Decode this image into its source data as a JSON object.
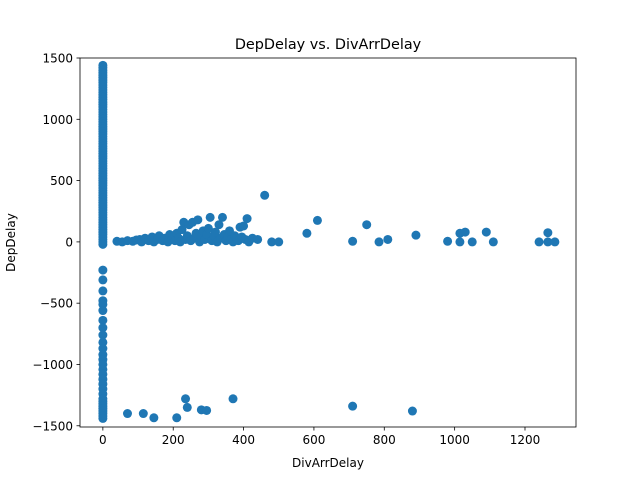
{
  "chart_data": {
    "type": "scatter",
    "title": "DepDelay vs. DivArrDelay",
    "xlabel": "DivArrDelay",
    "ylabel": "DepDelay",
    "xlim": [
      -65,
      1345
    ],
    "ylim": [
      -1510,
      1500
    ],
    "xticks": [
      0,
      200,
      400,
      600,
      800,
      1000,
      1200
    ],
    "yticks": [
      -1500,
      -1000,
      -500,
      0,
      500,
      1000,
      1500
    ],
    "grid": false,
    "legend": "none",
    "marker_color": "#1f77b4",
    "points": [
      [
        0,
        1440
      ],
      [
        0,
        1420
      ],
      [
        0,
        1400
      ],
      [
        0,
        1380
      ],
      [
        0,
        1360
      ],
      [
        0,
        1340
      ],
      [
        0,
        1320
      ],
      [
        0,
        1300
      ],
      [
        0,
        1280
      ],
      [
        0,
        1260
      ],
      [
        0,
        1240
      ],
      [
        0,
        1220
      ],
      [
        0,
        1200
      ],
      [
        0,
        1180
      ],
      [
        0,
        1160
      ],
      [
        0,
        1140
      ],
      [
        0,
        1120
      ],
      [
        0,
        1100
      ],
      [
        0,
        1080
      ],
      [
        0,
        1060
      ],
      [
        0,
        1040
      ],
      [
        0,
        1020
      ],
      [
        0,
        1000
      ],
      [
        0,
        980
      ],
      [
        0,
        960
      ],
      [
        0,
        940
      ],
      [
        0,
        920
      ],
      [
        0,
        900
      ],
      [
        0,
        880
      ],
      [
        0,
        860
      ],
      [
        0,
        840
      ],
      [
        0,
        820
      ],
      [
        0,
        800
      ],
      [
        0,
        780
      ],
      [
        0,
        760
      ],
      [
        0,
        740
      ],
      [
        0,
        720
      ],
      [
        0,
        700
      ],
      [
        0,
        680
      ],
      [
        0,
        660
      ],
      [
        0,
        640
      ],
      [
        0,
        620
      ],
      [
        0,
        600
      ],
      [
        0,
        580
      ],
      [
        0,
        560
      ],
      [
        0,
        540
      ],
      [
        0,
        520
      ],
      [
        0,
        500
      ],
      [
        0,
        480
      ],
      [
        0,
        460
      ],
      [
        0,
        440
      ],
      [
        0,
        420
      ],
      [
        0,
        400
      ],
      [
        0,
        380
      ],
      [
        0,
        360
      ],
      [
        0,
        340
      ],
      [
        0,
        320
      ],
      [
        0,
        300
      ],
      [
        0,
        280
      ],
      [
        0,
        260
      ],
      [
        0,
        240
      ],
      [
        0,
        220
      ],
      [
        0,
        200
      ],
      [
        0,
        180
      ],
      [
        0,
        160
      ],
      [
        0,
        140
      ],
      [
        0,
        120
      ],
      [
        0,
        100
      ],
      [
        0,
        80
      ],
      [
        0,
        60
      ],
      [
        0,
        40
      ],
      [
        0,
        20
      ],
      [
        0,
        0
      ],
      [
        0,
        -20
      ],
      [
        0,
        -230
      ],
      [
        0,
        -310
      ],
      [
        0,
        -400
      ],
      [
        0,
        -480
      ],
      [
        0,
        -510
      ],
      [
        0,
        -560
      ],
      [
        0,
        -640
      ],
      [
        0,
        -700
      ],
      [
        0,
        -760
      ],
      [
        0,
        -820
      ],
      [
        0,
        -870
      ],
      [
        0,
        -920
      ],
      [
        0,
        -960
      ],
      [
        0,
        -1000
      ],
      [
        0,
        -1040
      ],
      [
        0,
        -1080
      ],
      [
        0,
        -1120
      ],
      [
        0,
        -1160
      ],
      [
        0,
        -1200
      ],
      [
        0,
        -1240
      ],
      [
        0,
        -1280
      ],
      [
        0,
        -1300
      ],
      [
        0,
        -1320
      ],
      [
        0,
        -1340
      ],
      [
        0,
        -1360
      ],
      [
        0,
        -1380
      ],
      [
        0,
        -1400
      ],
      [
        0,
        -1420
      ],
      [
        0,
        -1440
      ],
      [
        40,
        5
      ],
      [
        55,
        0
      ],
      [
        70,
        10
      ],
      [
        85,
        5
      ],
      [
        95,
        15
      ],
      [
        105,
        20
      ],
      [
        110,
        0
      ],
      [
        120,
        30
      ],
      [
        130,
        10
      ],
      [
        140,
        40
      ],
      [
        145,
        0
      ],
      [
        155,
        20
      ],
      [
        160,
        50
      ],
      [
        170,
        10
      ],
      [
        175,
        30
      ],
      [
        185,
        0
      ],
      [
        190,
        60
      ],
      [
        195,
        20
      ],
      [
        200,
        40
      ],
      [
        205,
        10
      ],
      [
        210,
        70
      ],
      [
        215,
        30
      ],
      [
        220,
        0
      ],
      [
        225,
        100
      ],
      [
        230,
        160
      ],
      [
        235,
        20
      ],
      [
        240,
        50
      ],
      [
        245,
        140
      ],
      [
        250,
        10
      ],
      [
        255,
        160
      ],
      [
        260,
        30
      ],
      [
        265,
        70
      ],
      [
        270,
        180
      ],
      [
        275,
        0
      ],
      [
        280,
        40
      ],
      [
        285,
        90
      ],
      [
        290,
        20
      ],
      [
        295,
        60
      ],
      [
        300,
        110
      ],
      [
        305,
        200
      ],
      [
        310,
        10
      ],
      [
        315,
        50
      ],
      [
        320,
        80
      ],
      [
        325,
        0
      ],
      [
        330,
        140
      ],
      [
        335,
        30
      ],
      [
        340,
        200
      ],
      [
        345,
        60
      ],
      [
        350,
        10
      ],
      [
        355,
        40
      ],
      [
        360,
        90
      ],
      [
        365,
        20
      ],
      [
        370,
        0
      ],
      [
        375,
        50
      ],
      [
        380,
        30
      ],
      [
        385,
        10
      ],
      [
        390,
        120
      ],
      [
        395,
        40
      ],
      [
        400,
        130
      ],
      [
        405,
        20
      ],
      [
        410,
        190
      ],
      [
        415,
        0
      ],
      [
        425,
        30
      ],
      [
        440,
        20
      ],
      [
        460,
        380
      ],
      [
        480,
        0
      ],
      [
        500,
        0
      ],
      [
        580,
        70
      ],
      [
        610,
        175
      ],
      [
        710,
        5
      ],
      [
        750,
        140
      ],
      [
        785,
        0
      ],
      [
        810,
        20
      ],
      [
        890,
        55
      ],
      [
        980,
        5
      ],
      [
        1015,
        0
      ],
      [
        1015,
        70
      ],
      [
        1030,
        80
      ],
      [
        1050,
        0
      ],
      [
        1090,
        80
      ],
      [
        1110,
        0
      ],
      [
        1240,
        0
      ],
      [
        1265,
        75
      ],
      [
        1265,
        0
      ],
      [
        1285,
        0
      ],
      [
        70,
        -1400
      ],
      [
        115,
        -1400
      ],
      [
        145,
        -1435
      ],
      [
        210,
        -1435
      ],
      [
        235,
        -1280
      ],
      [
        240,
        -1350
      ],
      [
        280,
        -1370
      ],
      [
        295,
        -1375
      ],
      [
        370,
        -1280
      ],
      [
        710,
        -1340
      ],
      [
        880,
        -1380
      ]
    ]
  }
}
